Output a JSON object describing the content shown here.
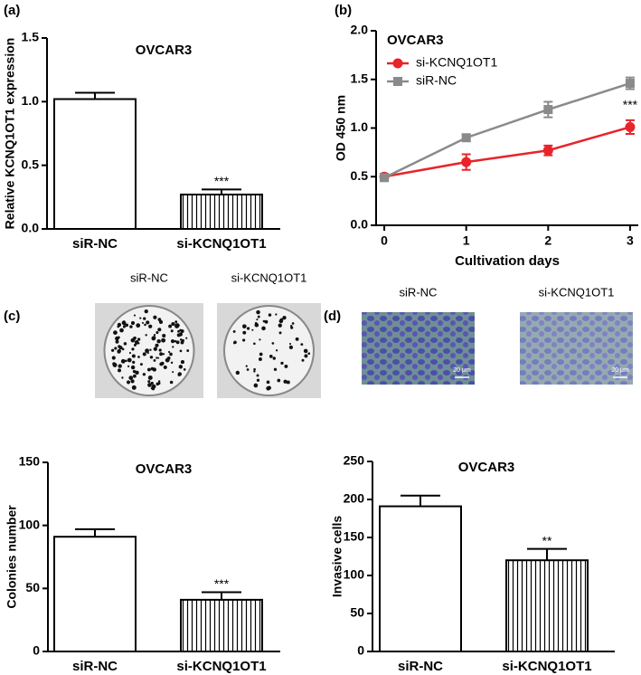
{
  "chart_data": [
    {
      "type": "bar",
      "panel_label": "(a)",
      "title": "OVCAR3",
      "ylabel": "Relative KCNQ1OT1 expression",
      "categories": [
        "siR-NC",
        "si-KCNQ1OT1"
      ],
      "values": [
        1.02,
        0.27
      ],
      "errors": [
        0.05,
        0.04
      ],
      "value_annotations": [
        null,
        "***"
      ],
      "ylim": [
        0,
        1.5
      ],
      "yticks": [
        {
          "value": 0,
          "label": "0.0"
        },
        0.5,
        {
          "value": 1,
          "label": "1.0"
        },
        1.5
      ]
    },
    {
      "type": "line",
      "panel_label": "(b)",
      "title": "OVCAR3",
      "xlabel": "Cultivation days",
      "ylabel": "OD 450 nm",
      "x": [
        0,
        1,
        2,
        3
      ],
      "xlim": [
        -0.1,
        3.1
      ],
      "xticks": [
        0,
        1,
        2,
        3
      ],
      "ylim": [
        0,
        2
      ],
      "yticks": [
        {
          "value": 0,
          "label": "0.0"
        },
        0.5,
        {
          "value": 1,
          "label": "1.0"
        },
        1.5,
        {
          "value": 2,
          "label": "2.0"
        }
      ],
      "legend": "upper-left",
      "annotation": "***",
      "series": [
        {
          "name": "si-KCNQ1OT1",
          "color": "#e8242b",
          "marker": "circle",
          "values": [
            0.5,
            0.65,
            0.77,
            1.01
          ],
          "errors": [
            0.03,
            0.08,
            0.05,
            0.07
          ]
        },
        {
          "name": "siR-NC",
          "color": "#8a8a8a",
          "marker": "square",
          "values": [
            0.49,
            0.9,
            1.19,
            1.46
          ],
          "errors": [
            0.03,
            0.03,
            0.08,
            0.06
          ]
        }
      ]
    },
    {
      "type": "bar",
      "panel_label": "(c)",
      "title": "OVCAR3",
      "ylabel": "Colonies number",
      "image_labels": [
        "siR-NC",
        "si-KCNQ1OT1"
      ],
      "categories": [
        "siR-NC",
        "si-KCNQ1OT1"
      ],
      "values": [
        91,
        41
      ],
      "errors": [
        6,
        6
      ],
      "value_annotations": [
        null,
        "***"
      ],
      "ylim": [
        0,
        150
      ],
      "yticks": [
        0,
        50,
        100,
        150
      ]
    },
    {
      "type": "bar",
      "panel_label": "(d)",
      "title": "OVCAR3",
      "ylabel": "Invasive cells",
      "image_labels": [
        "siR-NC",
        "si-KCNQ1OT1"
      ],
      "scale_bar": "20 μm",
      "categories": [
        "siR-NC",
        "si-KCNQ1OT1"
      ],
      "values": [
        191,
        120
      ],
      "errors": [
        14,
        15
      ],
      "value_annotations": [
        null,
        "**"
      ],
      "ylim": [
        0,
        250
      ],
      "yticks": [
        0,
        50,
        100,
        150,
        200,
        250
      ]
    }
  ]
}
